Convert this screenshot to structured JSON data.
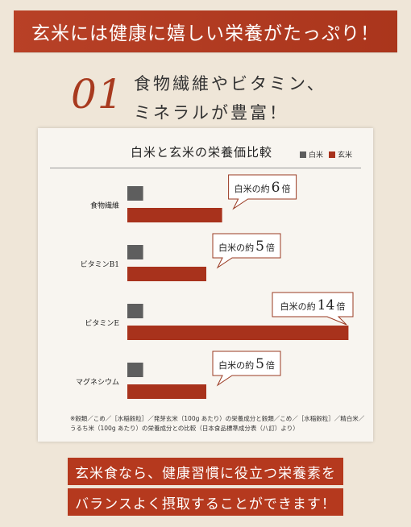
{
  "banner": {
    "text": "玄米には健康に嬉しい栄養がたっぷり！"
  },
  "heading": {
    "number": "01",
    "line1": "食物繊維やビタミン、",
    "line2": "ミネラルが豊富！"
  },
  "chart_data": {
    "type": "bar",
    "title": "白米と玄米の栄養価比較",
    "categories": [
      "食物繊維",
      "ビタミンB1",
      "ビタミンE",
      "マグネシウム"
    ],
    "series": [
      {
        "name": "白米",
        "values": [
          1,
          1,
          1,
          1
        ],
        "color": "#5e5e5e"
      },
      {
        "name": "玄米",
        "values": [
          6,
          5,
          14,
          5
        ],
        "color": "#a8321c"
      }
    ],
    "callouts": [
      {
        "prefix": "白米の約",
        "value": "6",
        "suffix": "倍"
      },
      {
        "prefix": "白米の約",
        "value": "5",
        "suffix": "倍"
      },
      {
        "prefix": "白米の約",
        "value": "14",
        "suffix": "倍"
      },
      {
        "prefix": "白米の約",
        "value": "5",
        "suffix": "倍"
      }
    ],
    "legend_position": "top-right"
  },
  "footnote": {
    "line1": "※穀類／こめ／［水稲穀粒］／発芽玄米（100g あたり）の栄養成分と穀類／こめ／［水稲穀粒］／精白米／",
    "line2": "うるち米（100g あたり）の栄養成分との比較（日本食品標準成分表（八訂）より）"
  },
  "message": {
    "line1": "玄米食なら、健康習慣に役立つ栄養素を",
    "line2": "バランスよく摂取することができます！"
  }
}
